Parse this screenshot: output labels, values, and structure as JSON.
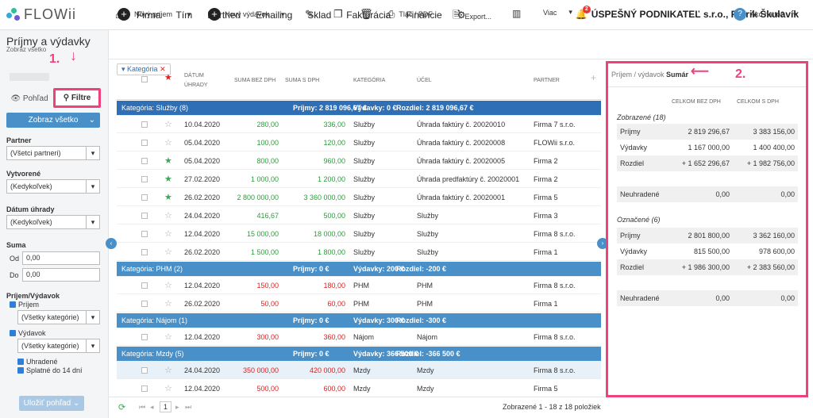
{
  "nav": {
    "brand": "FLOWii",
    "items": [
      "Firma",
      "Tím",
      "Partneri",
      "Emailing",
      "Sklad",
      "Fakturácia",
      "Financie"
    ],
    "notif_count": "2",
    "account": "ÚSPEŠNÝ PODNIKATEĽ s.r.o., Patrik Škulavík"
  },
  "page": {
    "title": "Príjmy a výdavky",
    "subtitle": "Zobraz všetko"
  },
  "toolbar": {
    "new_income": "Nový príjem",
    "new_expense": "Nový výdavok",
    "print": "Tlač / PDF",
    "export": "Export...",
    "more": "Viac",
    "help": "Ako na to?"
  },
  "sidebar": {
    "view_btn": "Pohľad",
    "filter_btn": "Filtre",
    "show_all": "Zobraz všetko",
    "partner_label": "Partner",
    "partner_value": "(Všetci partneri)",
    "created_label": "Vytvorené",
    "created_value": "(Kedykoľvek)",
    "paydate_label": "Dátum úhrady",
    "paydate_value": "(Kedykoľvek)",
    "sum_label": "Suma",
    "from_label": "Od",
    "from_value": "0,00",
    "to_label": "Do",
    "to_value": "0,00",
    "type_label": "Príjem/Výdavok",
    "income": "Príjem",
    "income_cat": "(Všetky kategórie)",
    "expense": "Výdavok",
    "expense_cat": "(Všetky kategórie)",
    "paid": "Uhradené",
    "due": "Splatné do 14 dní",
    "save_view": "Uložiť pohľad"
  },
  "grid": {
    "chip": "Kategória",
    "headers": {
      "date": "DÁTUM ÚHRADY",
      "net": "SUMA BEZ DPH",
      "gross": "SUMA S DPH",
      "cat": "KATEGÓRIA",
      "purpose": "ÚČEL",
      "partner": "PARTNER"
    },
    "groups": [
      {
        "title": "Kategória: Služby (8)",
        "inc": "Príjmy: 2 819 096,67 €",
        "exp": "Výdavky: 0 €",
        "diff": "Rozdiel: 2 819 096,67 €",
        "rows": [
          [
            "10.04.2020",
            "280,00",
            "336,00",
            "Služby",
            "Úhrada faktúry č. 20020010",
            "Firma 7 s.r.o.",
            "g",
            0
          ],
          [
            "05.04.2020",
            "100,00",
            "120,00",
            "Služby",
            "Úhrada faktúry č. 20020008",
            "FLOWii s.r.o.",
            "g",
            0
          ],
          [
            "05.04.2020",
            "800,00",
            "960,00",
            "Služby",
            "Úhrada faktúry č. 20020005",
            "Firma 2",
            "g",
            1
          ],
          [
            "27.02.2020",
            "1 000,00",
            "1 200,00",
            "Služby",
            "Úhrada predfaktúry č. 20020001",
            "Firma 2",
            "g",
            1
          ],
          [
            "26.02.2020",
            "2 800 000,00",
            "3 360 000,00",
            "Služby",
            "Úhrada faktúry č. 20020001",
            "Firma 5",
            "g",
            1
          ],
          [
            "24.04.2020",
            "416,67",
            "500,00",
            "Služby",
            "Služby",
            "Firma 3",
            "g",
            0
          ],
          [
            "12.04.2020",
            "15 000,00",
            "18 000,00",
            "Služby",
            "Služby",
            "Firma 8 s.r.o.",
            "g",
            0
          ],
          [
            "26.02.2020",
            "1 500,00",
            "1 800,00",
            "Služby",
            "Služby",
            "Firma 1",
            "g",
            0
          ]
        ]
      },
      {
        "title": "Kategória: PHM (2)",
        "inc": "Príjmy: 0 €",
        "exp": "Výdavky: 200 €",
        "diff": "Rozdiel: -200 €",
        "rows": [
          [
            "12.04.2020",
            "150,00",
            "180,00",
            "PHM",
            "PHM",
            "Firma 8 s.r.o.",
            "r",
            0
          ],
          [
            "26.02.2020",
            "50,00",
            "60,00",
            "PHM",
            "PHM",
            "Firma 1",
            "r",
            0
          ]
        ]
      },
      {
        "title": "Kategória: Nájom (1)",
        "inc": "Príjmy: 0 €",
        "exp": "Výdavky: 300 €",
        "diff": "Rozdiel: -300 €",
        "rows": [
          [
            "12.04.2020",
            "300,00",
            "360,00",
            "Nájom",
            "Nájom",
            "Firma 8 s.r.o.",
            "r",
            0
          ]
        ]
      },
      {
        "title": "Kategória: Mzdy (5)",
        "inc": "Príjmy: 0 €",
        "exp": "Výdavky: 366 500 €",
        "diff": "Rozdiel: -366 500 €",
        "rows": [
          [
            "24.04.2020",
            "350 000,00",
            "420 000,00",
            "Mzdy",
            "Mzdy",
            "Firma 8 s.r.o.",
            "r",
            0
          ],
          [
            "12.04.2020",
            "500,00",
            "600,00",
            "Mzdy",
            "Mzdy",
            "Firma 5",
            "r",
            0
          ]
        ]
      }
    ]
  },
  "footer": {
    "page": "1",
    "status": "Zobrazené 1 - 18 z 18 položiek"
  },
  "summary": {
    "tab1": "Príjem / výdavok",
    "tab2": "Sumár",
    "col1": "CELKOM BEZ DPH",
    "col2": "CELKOM S DPH",
    "shown_title": "Zobrazené (18)",
    "shown": [
      [
        "Príjmy",
        "2 819 296,67",
        "3 383 156,00"
      ],
      [
        "Výdavky",
        "1 167 000,00",
        "1 400 400,00"
      ],
      [
        "Rozdiel",
        "+ 1 652 296,67",
        "+ 1 982 756,00"
      ]
    ],
    "unpaid1": [
      "Neuhradené",
      "0,00",
      "0,00"
    ],
    "marked_title": "Označené (6)",
    "marked": [
      [
        "Príjmy",
        "2 801 800,00",
        "3 362 160,00"
      ],
      [
        "Výdavky",
        "815 500,00",
        "978 600,00"
      ],
      [
        "Rozdiel",
        "+ 1 986 300,00",
        "+ 2 383 560,00"
      ]
    ],
    "unpaid2": [
      "Neuhradené",
      "0,00",
      "0,00"
    ]
  },
  "annotations": {
    "a1": "1.",
    "a2": "2."
  },
  "colors": {
    "accent": "#4a90c8",
    "highlight": "#f0427a",
    "positive": "#2a9d3a",
    "negative": "#e02020"
  }
}
